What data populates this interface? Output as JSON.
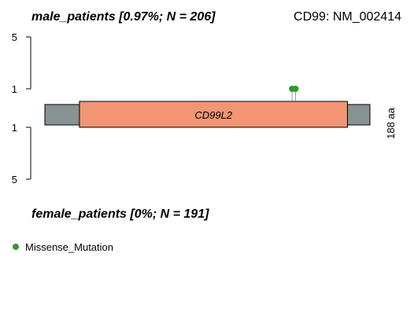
{
  "chart_data": {
    "type": "lollipop",
    "title_left": "male_patients [0.97%; N = 206]",
    "title_right": "CD99: NM_002414",
    "bottom_title": "female_patients [0%; N = 191]",
    "protein_length_label": "188 aa",
    "protein_length": 188,
    "top_axis": {
      "ticks": [
        5,
        1
      ]
    },
    "bottom_axis": {
      "ticks": [
        1,
        5
      ]
    },
    "domains": [
      {
        "name": "CD99L2",
        "start": 20,
        "end": 175,
        "color": "#f19572"
      }
    ],
    "backbone_color": "#869392",
    "mutations": [
      {
        "group": "top",
        "class": "Missense_Mutation",
        "position": 143,
        "count": 1
      },
      {
        "group": "top",
        "class": "Missense_Mutation",
        "position": 145,
        "count": 1
      }
    ],
    "legend": [
      {
        "label": "Missense_Mutation",
        "color": "#2e9b2e"
      }
    ]
  }
}
